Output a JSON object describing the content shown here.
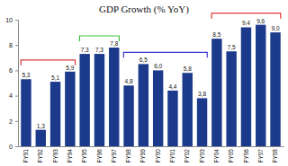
{
  "chart_data": {
    "type": "bar",
    "title": "GDP Growth (% YoY)",
    "categories": [
      "FY91",
      "FY92",
      "FY93",
      "FY94",
      "FY95",
      "FY96",
      "FY97",
      "FY98",
      "FY99",
      "FY00",
      "FY01",
      "FY02",
      "FY03",
      "FY04",
      "FY05",
      "FY06",
      "FY07",
      "FY08"
    ],
    "values": [
      5.3,
      1.3,
      5.1,
      5.9,
      7.3,
      7.3,
      7.8,
      4.8,
      6.5,
      6.0,
      4.4,
      5.8,
      3.8,
      8.5,
      7.5,
      9.4,
      9.6,
      9.0
    ],
    "value_labels": [
      "5,3",
      "1,3",
      "5,1",
      "5,9",
      "7,3",
      "7,3",
      "7,8",
      "4,8",
      "6,5",
      "6,0",
      "4,4",
      "5,8",
      "3,8",
      "8,5",
      "7,5",
      "9,4",
      "9,6",
      "9,0"
    ],
    "data_labels": true,
    "color": "#1c3a8c",
    "ylim": [
      0,
      10
    ],
    "yticks": [
      0,
      2,
      4,
      6,
      8,
      10
    ],
    "grid": false
  }
}
